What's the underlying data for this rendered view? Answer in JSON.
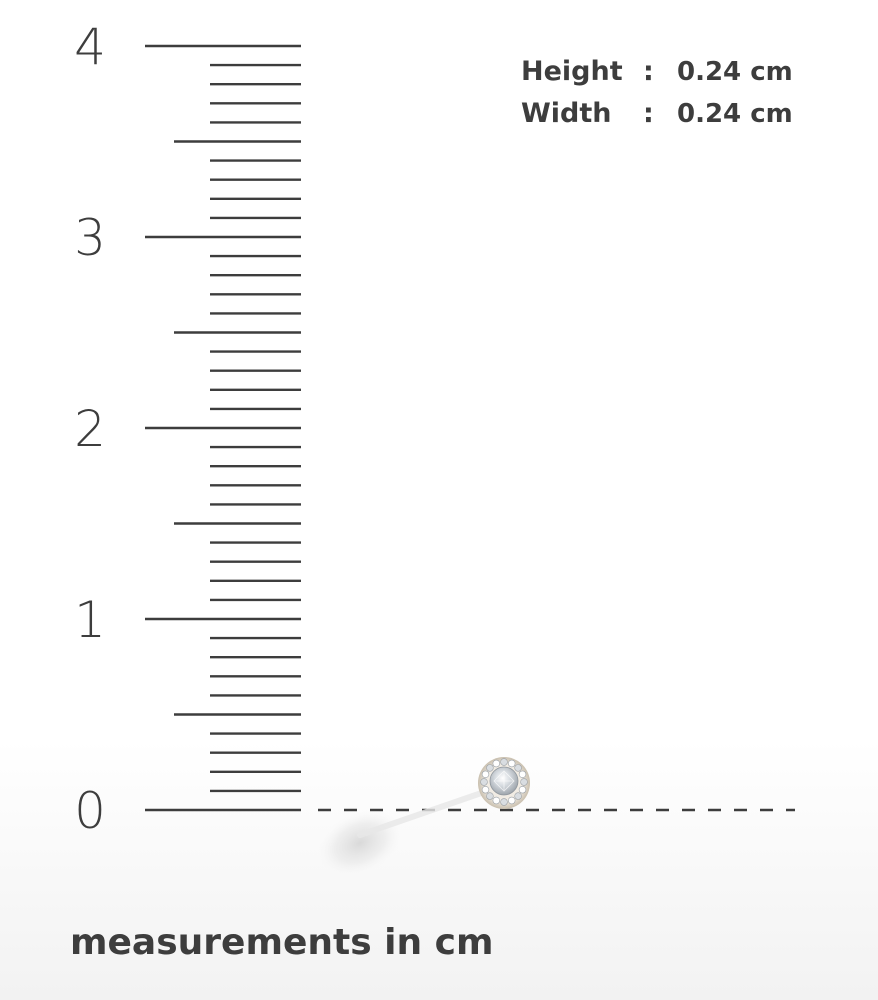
{
  "ruler": {
    "unit": "cm",
    "min": 0,
    "max": 4,
    "minor_step": 0.1,
    "labels": [
      "0",
      "1",
      "2",
      "3",
      "4"
    ]
  },
  "dimensions": {
    "height_label": "Height",
    "height_colon": ":",
    "height_value": "0.24 cm",
    "width_label": "Width",
    "width_colon": ":",
    "width_value": "0.24 cm"
  },
  "caption": "measurements in cm",
  "product": {
    "name": "halo-diamond-stud",
    "size_cm": 0.24
  },
  "colors": {
    "ink": "#3d3d3d",
    "background": "#ffffff",
    "metal": "#e7dccb",
    "stone": "#dfe3e6"
  }
}
